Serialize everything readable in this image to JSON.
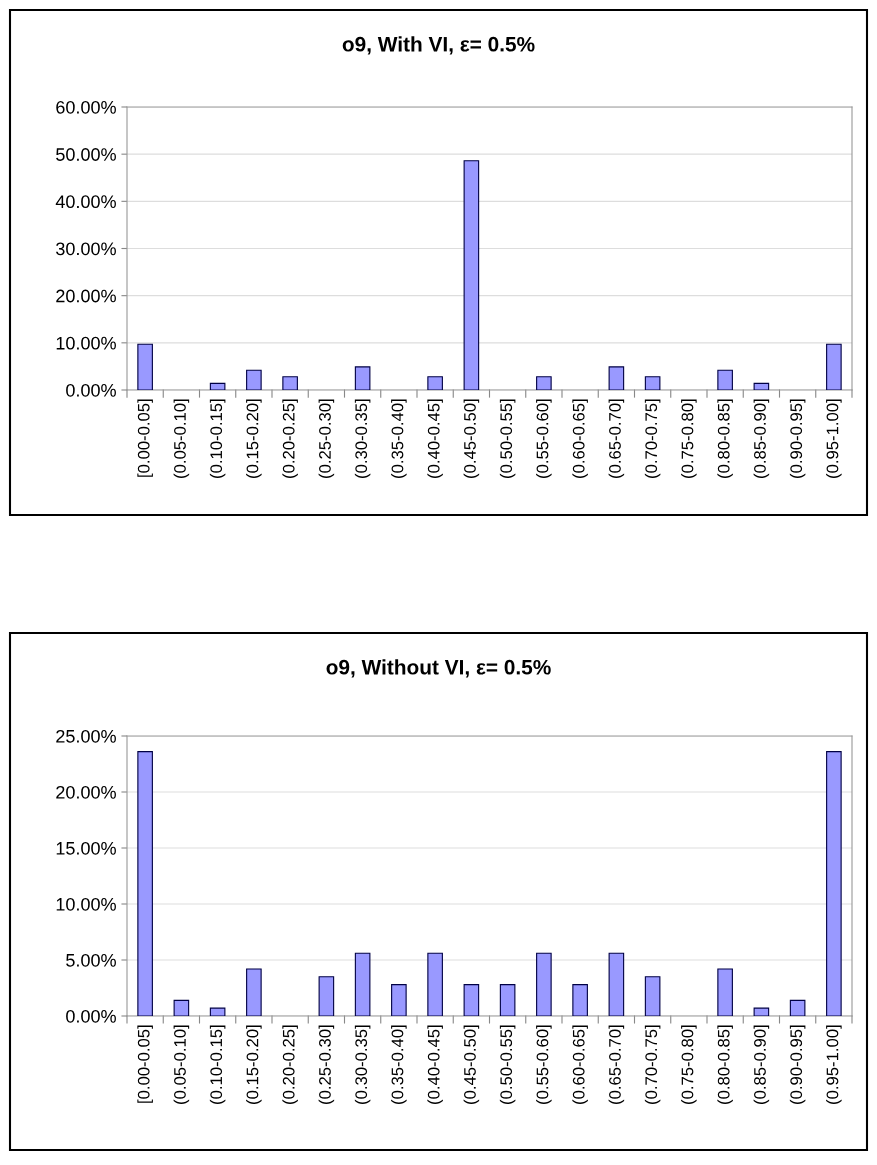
{
  "chart_data": [
    {
      "type": "bar",
      "title": "o9, With VI, ε= 0.5%",
      "categories": [
        "[0.00-0.05]",
        "(0.05-0.10]",
        "(0.10-0.15]",
        "(0.15-0.20]",
        "(0.20-0.25]",
        "(0.25-0.30]",
        "(0.30-0.35]",
        "(0.35-0.40]",
        "(0.40-0.45]",
        "(0.45-0.50]",
        "(0.50-0.55]",
        "(0.55-0.60]",
        "(0.60-0.65]",
        "(0.65-0.70]",
        "(0.70-0.75]",
        "(0.75-0.80]",
        "(0.80-0.85]",
        "(0.85-0.90]",
        "(0.90-0.95]",
        "(0.95-1.00]"
      ],
      "values": [
        9.7,
        0,
        1.4,
        4.2,
        2.8,
        0,
        4.9,
        0,
        2.8,
        48.6,
        0,
        2.8,
        0,
        4.9,
        2.8,
        0,
        4.2,
        1.4,
        0,
        9.7
      ],
      "color": "#9999ff",
      "ylim": [
        0,
        60
      ],
      "yticks": [
        {
          "value": 0,
          "label": "0.00%"
        },
        {
          "value": 10,
          "label": "10.00%"
        },
        {
          "value": 20,
          "label": "20.00%"
        },
        {
          "value": 30,
          "label": "30.00%"
        },
        {
          "value": 40,
          "label": "40.00%"
        },
        {
          "value": 50,
          "label": "50.00%"
        },
        {
          "value": 60,
          "label": "60.00%"
        }
      ],
      "grid": "y"
    },
    {
      "type": "bar",
      "title": "o9, Without VI, ε= 0.5%",
      "categories": [
        "[0.00-0.05]",
        "(0.05-0.10]",
        "(0.10-0.15]",
        "(0.15-0.20]",
        "(0.20-0.25]",
        "(0.25-0.30]",
        "(0.30-0.35]",
        "(0.35-0.40]",
        "(0.40-0.45]",
        "(0.45-0.50]",
        "(0.50-0.55]",
        "(0.55-0.60]",
        "(0.60-0.65]",
        "(0.65-0.70]",
        "(0.70-0.75]",
        "(0.75-0.80]",
        "(0.80-0.85]",
        "(0.85-0.90]",
        "(0.90-0.95]",
        "(0.95-1.00]"
      ],
      "values": [
        23.6,
        1.4,
        0.7,
        4.2,
        0,
        3.5,
        5.6,
        2.8,
        5.6,
        2.8,
        2.8,
        5.6,
        2.8,
        5.6,
        3.5,
        0,
        4.2,
        0.7,
        1.4,
        23.6
      ],
      "color": "#9999ff",
      "ylim": [
        0,
        25
      ],
      "yticks": [
        {
          "value": 0,
          "label": "0.00%"
        },
        {
          "value": 5,
          "label": "5.00%"
        },
        {
          "value": 10,
          "label": "10.00%"
        },
        {
          "value": 15,
          "label": "15.00%"
        },
        {
          "value": 20,
          "label": "20.00%"
        },
        {
          "value": 25,
          "label": "25.00%"
        }
      ],
      "grid": "y"
    }
  ]
}
